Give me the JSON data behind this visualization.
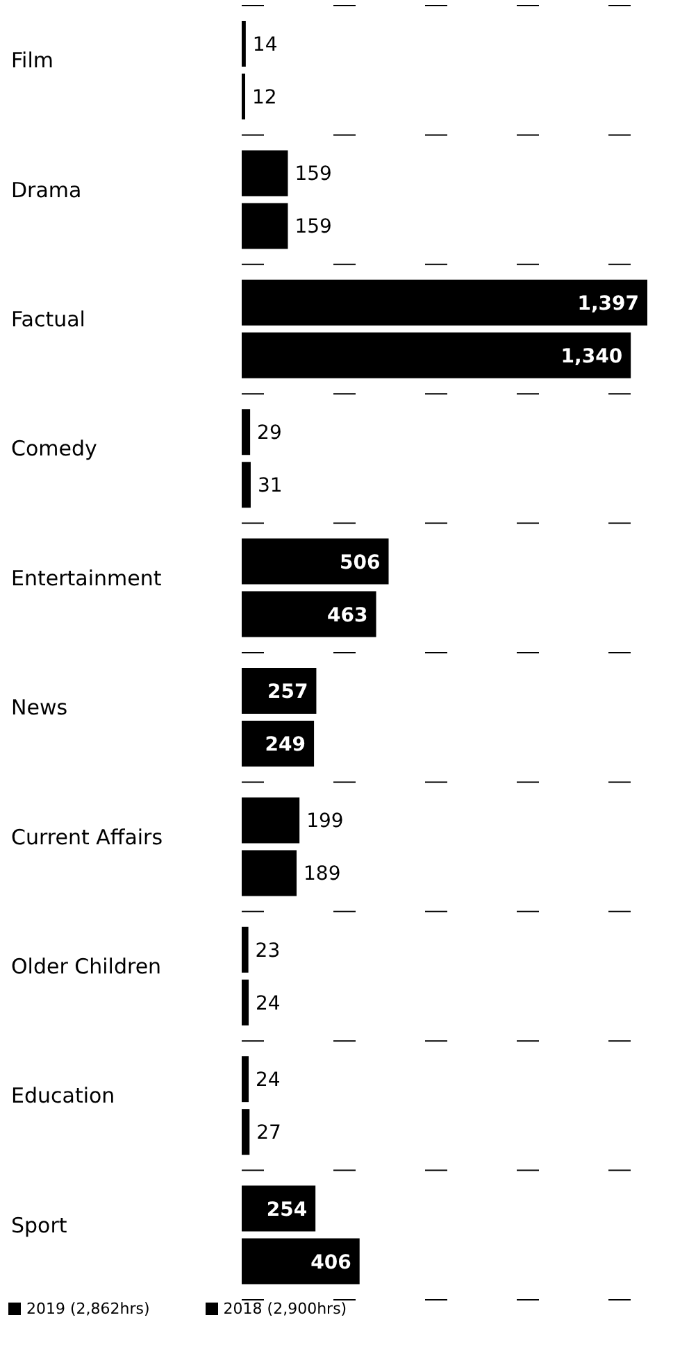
{
  "chart_data": {
    "type": "bar",
    "orientation": "horizontal",
    "categories": [
      "Film",
      "Drama",
      "Factual",
      "Comedy",
      "Entertainment",
      "News",
      "Current Affairs",
      "Older Children",
      "Education",
      "Sport"
    ],
    "series": [
      {
        "name": "2019 (2,862hrs)",
        "color": "#000000",
        "values": [
          14,
          159,
          1397,
          29,
          506,
          257,
          199,
          23,
          24,
          254
        ],
        "value_labels": [
          "14",
          "159",
          "1,397",
          "29",
          "506",
          "257",
          "199",
          "23",
          "24",
          "254"
        ]
      },
      {
        "name": "2018 (2,900hrs)",
        "color": "#000000",
        "values": [
          12,
          159,
          1340,
          31,
          463,
          249,
          189,
          24,
          27,
          406
        ],
        "value_labels": [
          "12",
          "159",
          "1,340",
          "31",
          "463",
          "249",
          "189",
          "24",
          "27",
          "406"
        ]
      }
    ],
    "grid": "y",
    "legend": "bottom left"
  }
}
